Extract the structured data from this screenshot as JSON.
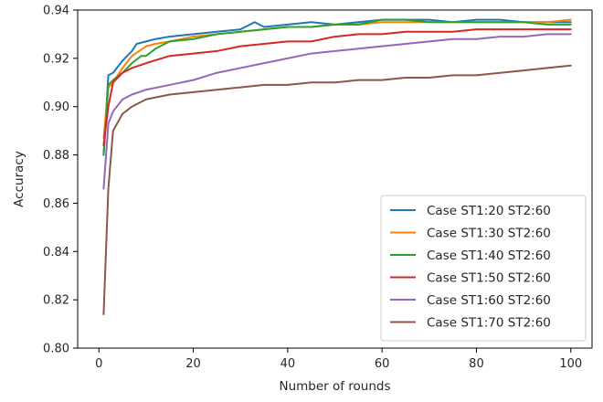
{
  "chart_data": {
    "type": "line",
    "title": "",
    "xlabel": "Number of rounds",
    "ylabel": "Accuracy",
    "xlim": [
      -4.5,
      104.5
    ],
    "ylim": [
      0.8,
      0.94
    ],
    "xticks": [
      0,
      20,
      40,
      60,
      80,
      100
    ],
    "yticks": [
      0.8,
      0.82,
      0.84,
      0.86,
      0.88,
      0.9,
      0.92,
      0.94
    ],
    "xtick_labels": [
      "0",
      "20",
      "40",
      "60",
      "80",
      "100"
    ],
    "ytick_labels": [
      "0.80",
      "0.82",
      "0.84",
      "0.86",
      "0.88",
      "0.90",
      "0.92",
      "0.94"
    ],
    "grid": false,
    "legend_position": "lower-right",
    "series": [
      {
        "name": "Case ST1:20 ST2:60",
        "color": "#1f77b4",
        "points": [
          [
            1,
            0.88
          ],
          [
            2,
            0.913
          ],
          [
            3,
            0.914
          ],
          [
            5,
            0.919
          ],
          [
            7,
            0.923
          ],
          [
            8,
            0.926
          ],
          [
            10,
            0.927
          ],
          [
            12,
            0.928
          ],
          [
            15,
            0.929
          ],
          [
            20,
            0.93
          ],
          [
            25,
            0.931
          ],
          [
            30,
            0.932
          ],
          [
            33,
            0.935
          ],
          [
            35,
            0.933
          ],
          [
            40,
            0.934
          ],
          [
            45,
            0.935
          ],
          [
            50,
            0.934
          ],
          [
            55,
            0.935
          ],
          [
            60,
            0.936
          ],
          [
            65,
            0.936
          ],
          [
            70,
            0.936
          ],
          [
            75,
            0.935
          ],
          [
            80,
            0.936
          ],
          [
            85,
            0.936
          ],
          [
            90,
            0.935
          ],
          [
            95,
            0.935
          ],
          [
            100,
            0.935
          ]
        ]
      },
      {
        "name": "Case ST1:30 ST2:60",
        "color": "#ff7f0e",
        "points": [
          [
            1,
            0.887
          ],
          [
            2,
            0.908
          ],
          [
            3,
            0.91
          ],
          [
            5,
            0.916
          ],
          [
            7,
            0.921
          ],
          [
            10,
            0.925
          ],
          [
            12,
            0.926
          ],
          [
            15,
            0.927
          ],
          [
            20,
            0.929
          ],
          [
            25,
            0.93
          ],
          [
            30,
            0.931
          ],
          [
            35,
            0.932
          ],
          [
            40,
            0.933
          ],
          [
            45,
            0.933
          ],
          [
            50,
            0.934
          ],
          [
            55,
            0.934
          ],
          [
            60,
            0.935
          ],
          [
            65,
            0.935
          ],
          [
            70,
            0.935
          ],
          [
            75,
            0.935
          ],
          [
            80,
            0.935
          ],
          [
            85,
            0.935
          ],
          [
            90,
            0.935
          ],
          [
            95,
            0.935
          ],
          [
            100,
            0.936
          ]
        ]
      },
      {
        "name": "Case ST1:40 ST2:60",
        "color": "#2ca02c",
        "points": [
          [
            1,
            0.88
          ],
          [
            2,
            0.909
          ],
          [
            3,
            0.911
          ],
          [
            5,
            0.914
          ],
          [
            7,
            0.918
          ],
          [
            9,
            0.921
          ],
          [
            10,
            0.921
          ],
          [
            12,
            0.924
          ],
          [
            15,
            0.927
          ],
          [
            20,
            0.928
          ],
          [
            25,
            0.93
          ],
          [
            30,
            0.931
          ],
          [
            35,
            0.932
          ],
          [
            40,
            0.933
          ],
          [
            45,
            0.933
          ],
          [
            50,
            0.934
          ],
          [
            55,
            0.934
          ],
          [
            60,
            0.936
          ],
          [
            65,
            0.936
          ],
          [
            70,
            0.935
          ],
          [
            75,
            0.935
          ],
          [
            80,
            0.935
          ],
          [
            85,
            0.935
          ],
          [
            90,
            0.935
          ],
          [
            95,
            0.934
          ],
          [
            100,
            0.934
          ]
        ]
      },
      {
        "name": "Case ST1:50 ST2:60",
        "color": "#d62728",
        "points": [
          [
            1,
            0.884
          ],
          [
            2,
            0.9
          ],
          [
            3,
            0.91
          ],
          [
            5,
            0.914
          ],
          [
            7,
            0.916
          ],
          [
            10,
            0.918
          ],
          [
            15,
            0.921
          ],
          [
            20,
            0.922
          ],
          [
            25,
            0.923
          ],
          [
            30,
            0.925
          ],
          [
            35,
            0.926
          ],
          [
            40,
            0.927
          ],
          [
            45,
            0.927
          ],
          [
            50,
            0.929
          ],
          [
            55,
            0.93
          ],
          [
            60,
            0.93
          ],
          [
            65,
            0.931
          ],
          [
            70,
            0.931
          ],
          [
            75,
            0.931
          ],
          [
            80,
            0.932
          ],
          [
            85,
            0.932
          ],
          [
            90,
            0.932
          ],
          [
            95,
            0.932
          ],
          [
            100,
            0.932
          ]
        ]
      },
      {
        "name": "Case ST1:60 ST2:60",
        "color": "#9467bd",
        "points": [
          [
            1,
            0.866
          ],
          [
            2,
            0.893
          ],
          [
            3,
            0.898
          ],
          [
            5,
            0.903
          ],
          [
            7,
            0.905
          ],
          [
            10,
            0.907
          ],
          [
            15,
            0.909
          ],
          [
            20,
            0.911
          ],
          [
            25,
            0.914
          ],
          [
            30,
            0.916
          ],
          [
            35,
            0.918
          ],
          [
            40,
            0.92
          ],
          [
            45,
            0.922
          ],
          [
            50,
            0.923
          ],
          [
            55,
            0.924
          ],
          [
            60,
            0.925
          ],
          [
            65,
            0.926
          ],
          [
            70,
            0.927
          ],
          [
            75,
            0.928
          ],
          [
            80,
            0.928
          ],
          [
            85,
            0.929
          ],
          [
            90,
            0.929
          ],
          [
            95,
            0.93
          ],
          [
            100,
            0.93
          ]
        ]
      },
      {
        "name": "Case ST1:70 ST2:60",
        "color": "#8c564b",
        "points": [
          [
            1,
            0.814
          ],
          [
            2,
            0.866
          ],
          [
            3,
            0.89
          ],
          [
            5,
            0.897
          ],
          [
            7,
            0.9
          ],
          [
            10,
            0.903
          ],
          [
            15,
            0.905
          ],
          [
            20,
            0.906
          ],
          [
            25,
            0.907
          ],
          [
            30,
            0.908
          ],
          [
            35,
            0.909
          ],
          [
            40,
            0.909
          ],
          [
            45,
            0.91
          ],
          [
            50,
            0.91
          ],
          [
            55,
            0.911
          ],
          [
            60,
            0.911
          ],
          [
            65,
            0.912
          ],
          [
            70,
            0.912
          ],
          [
            75,
            0.913
          ],
          [
            80,
            0.913
          ],
          [
            85,
            0.914
          ],
          [
            90,
            0.915
          ],
          [
            95,
            0.916
          ],
          [
            100,
            0.917
          ]
        ]
      }
    ]
  }
}
